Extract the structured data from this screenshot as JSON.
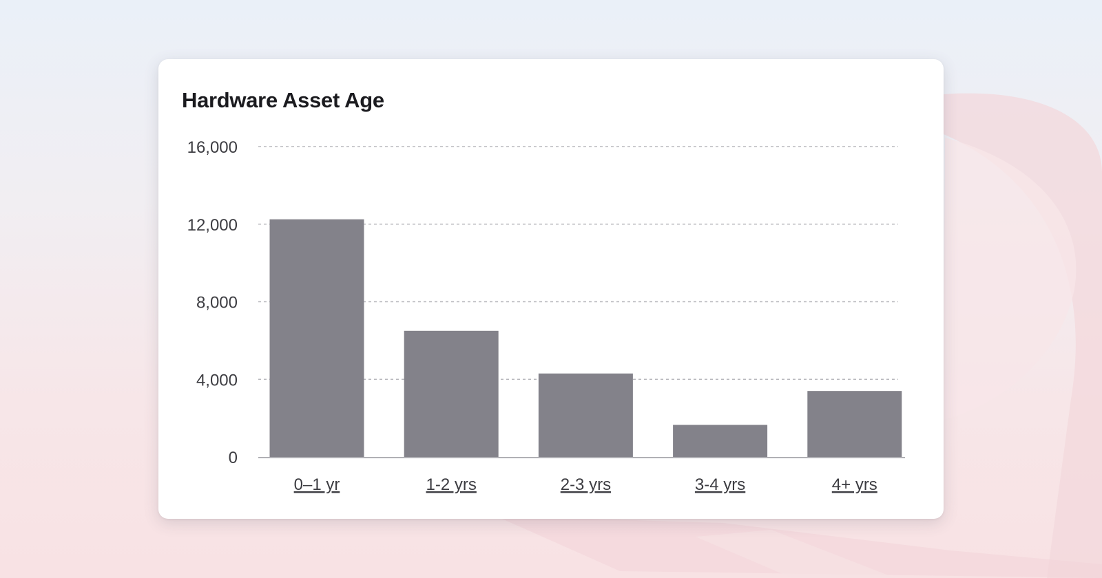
{
  "card": {
    "title": "Hardware Asset Age"
  },
  "colors": {
    "bar": "#83828a",
    "grid": "#b8b8bd",
    "axis": "#b0b0b5",
    "text": "#3d3d42"
  },
  "chart_data": {
    "type": "bar",
    "title": "Hardware Asset Age",
    "xlabel": "",
    "ylabel": "",
    "categories": [
      "0–1 yr",
      "1-2 yrs",
      "2-3 yrs",
      "3-4 yrs",
      "4+ yrs"
    ],
    "values": [
      12250,
      6500,
      4300,
      1650,
      3400
    ],
    "yticks": [
      0,
      4000,
      8000,
      12000,
      16000
    ],
    "ytick_labels": [
      "0",
      "4,000",
      "8,000",
      "12,000",
      "16,000"
    ],
    "ylim": [
      0,
      16000
    ],
    "grid": true,
    "legend": "none"
  }
}
